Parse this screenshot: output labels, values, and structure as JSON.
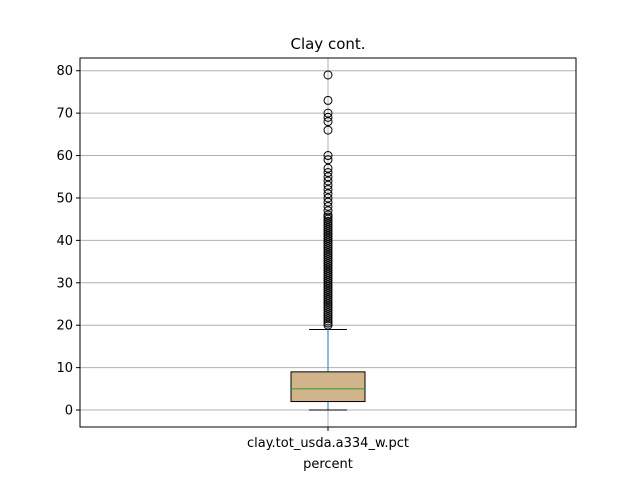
{
  "chart_data": {
    "type": "box",
    "title": "Clay cont.",
    "xlabel": "percent",
    "ylabel": "",
    "categories": [
      "clay.tot_usda.a334_w.pct"
    ],
    "ylim": [
      -4,
      83
    ],
    "yticks": [
      0,
      10,
      20,
      30,
      40,
      50,
      60,
      70,
      80
    ],
    "grid": true,
    "box": {
      "whisker_low": 0,
      "q1": 2,
      "median": 5,
      "q3": 9,
      "whisker_high": 19
    },
    "outliers": [
      20,
      20.5,
      21,
      21.5,
      22,
      22.5,
      23,
      23.5,
      24,
      24.5,
      25,
      25.5,
      26,
      26.5,
      27,
      27.5,
      28,
      28.5,
      29,
      29.5,
      30,
      30.5,
      31,
      31.5,
      32,
      32.5,
      33,
      33.5,
      34,
      34.5,
      35,
      35.5,
      36,
      36.5,
      37,
      37.5,
      38,
      38.5,
      39,
      39.5,
      40,
      40.5,
      41,
      41.5,
      42,
      42.5,
      43,
      43.5,
      44,
      44.5,
      45,
      45.5,
      46,
      47,
      48,
      49,
      50,
      51,
      52,
      53,
      54,
      55,
      56,
      57,
      59,
      60,
      66,
      68,
      69,
      70,
      73,
      79
    ],
    "colors": {
      "box_fill": "#d2b48c",
      "whisker": "#1f77b4",
      "median": "#2ca02c",
      "outline": "#000000",
      "grid": "#b0b0b0"
    }
  }
}
